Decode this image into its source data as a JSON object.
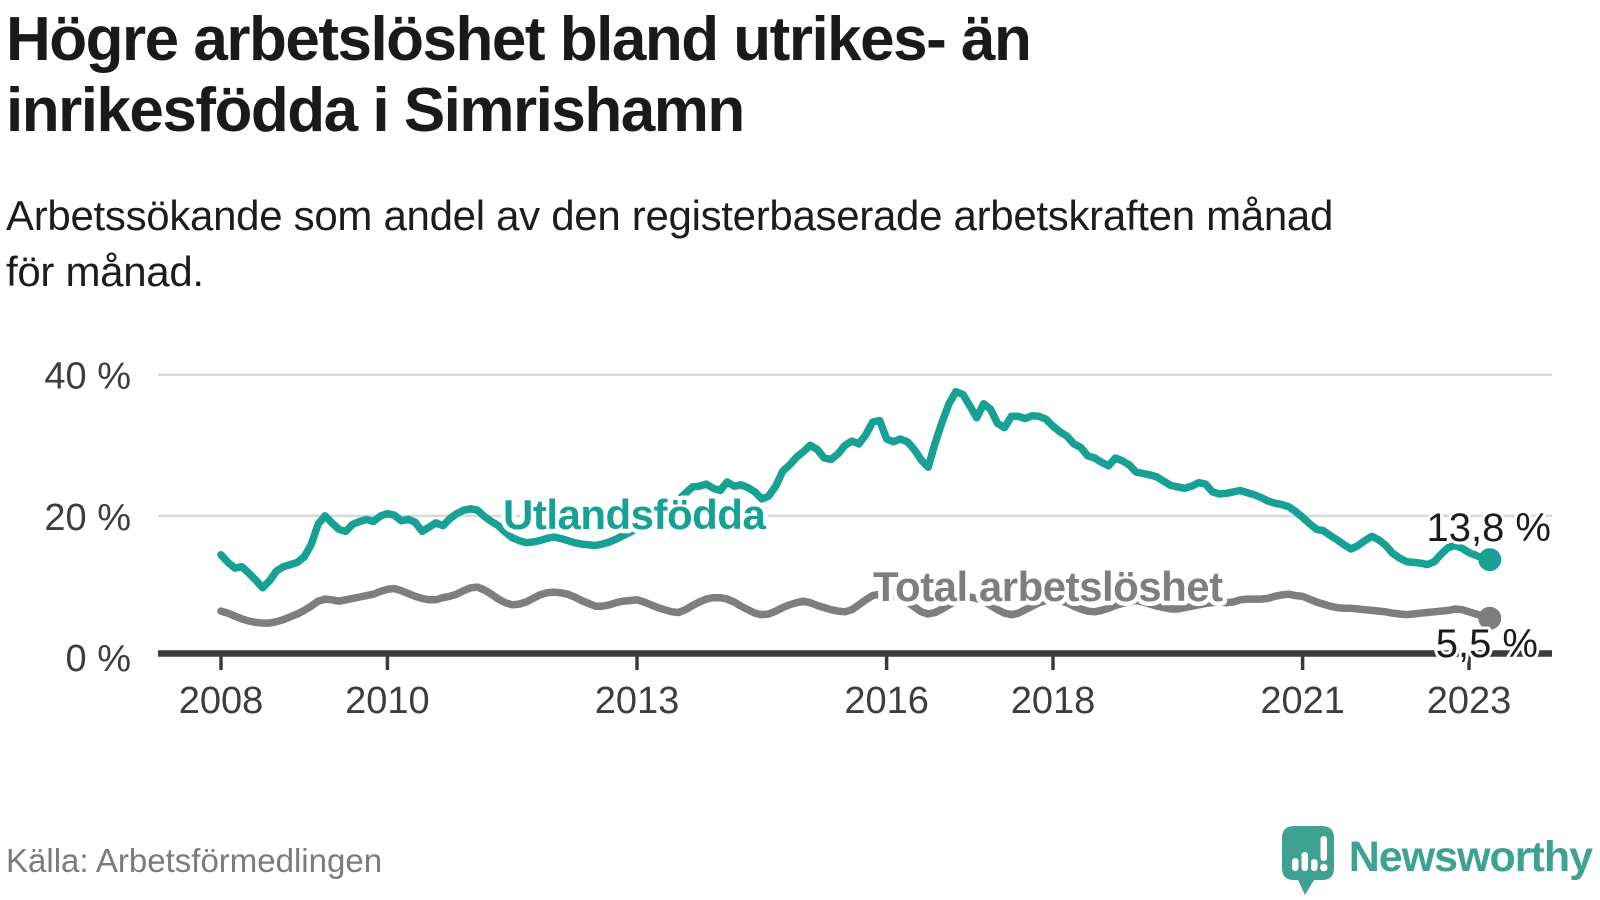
{
  "header": {
    "title_lines": [
      "Högre arbetslöshet bland utrikes- än",
      "inrikesfödda i Simrishamn"
    ],
    "subtitle_lines": [
      "Arbetssökande som andel av den registerbaserade arbetskraften månad",
      "för månad."
    ]
  },
  "footer": {
    "source": "Källa: Arbetsförmedlingen",
    "brand": "Newsworthy"
  },
  "colors": {
    "accent_teal": "#16a194",
    "series_gray": "#7e7e7e",
    "axis": "#3b3b3b",
    "gridline": "#d9d9d9",
    "axis_text": "#3d3d3d",
    "value_text": "#1c1c1c",
    "muted_text": "#7b7b7b",
    "logo_teal": "#3fa192"
  },
  "chart_data": {
    "type": "line",
    "title": "Högre arbetslöshet bland utrikes- än inrikesfödda i Simrishamn",
    "subtitle": "Arbetssökande som andel av den registerbaserade arbetskraften månad för månad.",
    "source": "Källa: Arbetsförmedlingen",
    "unit": "%",
    "frequency": "monthly",
    "x_start": "2008-01",
    "x_end": "2023-04",
    "ylim": [
      0,
      42
    ],
    "grid": "horizontal-only",
    "legend": "inline-labels-on-lines",
    "y_ticks": [
      {
        "value": 0,
        "label": "0 %"
      },
      {
        "value": 20,
        "label": "20 %"
      },
      {
        "value": 40,
        "label": "40 %"
      }
    ],
    "x_ticks": [
      {
        "year": 2008,
        "label": "2008"
      },
      {
        "year": 2010,
        "label": "2010"
      },
      {
        "year": 2013,
        "label": "2013"
      },
      {
        "year": 2016,
        "label": "2016"
      },
      {
        "year": 2018,
        "label": "2018"
      },
      {
        "year": 2021,
        "label": "2021"
      },
      {
        "year": 2023,
        "label": "2023"
      }
    ],
    "series": [
      {
        "name": "Utlandsfödda",
        "color": "#16a194",
        "end_label": "13,8 %",
        "last_value": 13.8,
        "values": [
          14.5,
          13.4,
          12.6,
          12.8,
          11.9,
          10.9,
          9.8,
          10.8,
          12.2,
          12.8,
          13.1,
          13.4,
          14.2,
          15.9,
          18.8,
          20.0,
          19.0,
          18.1,
          17.8,
          18.8,
          19.2,
          19.5,
          19.2,
          20.0,
          20.3,
          20.1,
          19.3,
          19.5,
          19.1,
          17.8,
          18.4,
          19.0,
          18.6,
          19.6,
          20.3,
          20.8,
          21.0,
          20.8,
          19.9,
          19.2,
          18.6,
          17.7,
          16.9,
          16.5,
          16.2,
          16.3,
          16.5,
          16.8,
          17.0,
          16.8,
          16.5,
          16.2,
          16.0,
          15.9,
          15.8,
          16.0,
          16.3,
          16.7,
          17.2,
          17.7,
          18.2,
          18.8,
          19.4,
          20.1,
          20.8,
          21.5,
          22.3,
          23.2,
          24.1,
          24.2,
          24.5,
          23.9,
          23.6,
          24.8,
          24.2,
          24.4,
          24.0,
          23.4,
          22.4,
          22.8,
          24.2,
          26.3,
          27.2,
          28.3,
          29.1,
          30.0,
          29.4,
          28.2,
          28.0,
          28.8,
          30.0,
          30.6,
          30.2,
          31.5,
          33.3,
          33.5,
          30.9,
          30.5,
          30.9,
          30.5,
          29.4,
          27.9,
          26.9,
          30.3,
          33.3,
          35.9,
          37.6,
          37.2,
          35.6,
          33.9,
          35.9,
          35.1,
          33.1,
          32.5,
          34.1,
          34.1,
          33.8,
          34.2,
          34.1,
          33.7,
          32.7,
          31.9,
          31.3,
          30.2,
          29.7,
          28.5,
          28.2,
          27.6,
          27.1,
          28.2,
          27.8,
          27.2,
          26.2,
          26.0,
          25.8,
          25.5,
          24.9,
          24.3,
          24.1,
          23.9,
          24.2,
          24.7,
          24.5,
          23.4,
          23.1,
          23.2,
          23.4,
          23.6,
          23.3,
          23.0,
          22.6,
          22.1,
          21.8,
          21.6,
          21.3,
          20.6,
          19.8,
          18.9,
          18.1,
          17.9,
          17.2,
          16.6,
          15.9,
          15.3,
          15.8,
          16.5,
          17.1,
          16.6,
          15.8,
          14.7,
          14.0,
          13.5,
          13.4,
          13.3,
          13.1,
          13.5,
          14.6,
          15.5,
          15.8,
          15.4,
          14.8,
          14.4,
          14.0,
          13.8
        ]
      },
      {
        "name": "Total arbetslöshet",
        "color": "#7e7e7e",
        "end_label": "5,5 %",
        "last_value": 5.5,
        "values": [
          6.5,
          6.2,
          5.8,
          5.4,
          5.1,
          4.9,
          4.8,
          4.8,
          5.0,
          5.3,
          5.7,
          6.1,
          6.6,
          7.2,
          7.9,
          8.2,
          8.1,
          7.9,
          8.1,
          8.3,
          8.5,
          8.7,
          8.9,
          9.3,
          9.6,
          9.7,
          9.4,
          9.0,
          8.6,
          8.3,
          8.1,
          8.1,
          8.4,
          8.6,
          8.9,
          9.4,
          9.8,
          9.9,
          9.5,
          8.9,
          8.2,
          7.7,
          7.4,
          7.5,
          7.8,
          8.3,
          8.8,
          9.1,
          9.2,
          9.1,
          8.9,
          8.5,
          8.0,
          7.6,
          7.2,
          7.2,
          7.4,
          7.7,
          7.9,
          8.0,
          8.1,
          7.8,
          7.4,
          7.0,
          6.7,
          6.4,
          6.3,
          6.7,
          7.3,
          7.8,
          8.2,
          8.4,
          8.4,
          8.2,
          7.8,
          7.2,
          6.7,
          6.2,
          6.0,
          6.1,
          6.5,
          7.0,
          7.4,
          7.7,
          7.9,
          7.7,
          7.3,
          7.0,
          6.7,
          6.5,
          6.4,
          6.7,
          7.4,
          8.1,
          8.7,
          8.9,
          9.0,
          8.8,
          8.4,
          7.8,
          7.1,
          6.4,
          6.1,
          6.3,
          6.8,
          7.4,
          7.9,
          8.3,
          8.5,
          8.3,
          7.9,
          7.3,
          6.7,
          6.2,
          6.0,
          6.2,
          6.7,
          7.2,
          7.7,
          8.0,
          8.2,
          8.0,
          7.7,
          7.2,
          6.8,
          6.5,
          6.4,
          6.6,
          6.9,
          7.3,
          7.6,
          7.8,
          8.0,
          7.8,
          7.5,
          7.2,
          7.0,
          6.8,
          6.8,
          7.0,
          7.2,
          7.4,
          7.6,
          7.7,
          7.8,
          7.7,
          7.8,
          8.1,
          8.2,
          8.2,
          8.2,
          8.3,
          8.6,
          8.8,
          8.9,
          8.7,
          8.6,
          8.2,
          7.8,
          7.5,
          7.2,
          7.0,
          6.9,
          6.9,
          6.8,
          6.7,
          6.6,
          6.5,
          6.4,
          6.2,
          6.1,
          6.0,
          6.1,
          6.2,
          6.3,
          6.4,
          6.5,
          6.6,
          6.8,
          6.7,
          6.4,
          6.1,
          5.8,
          5.5
        ]
      }
    ]
  }
}
